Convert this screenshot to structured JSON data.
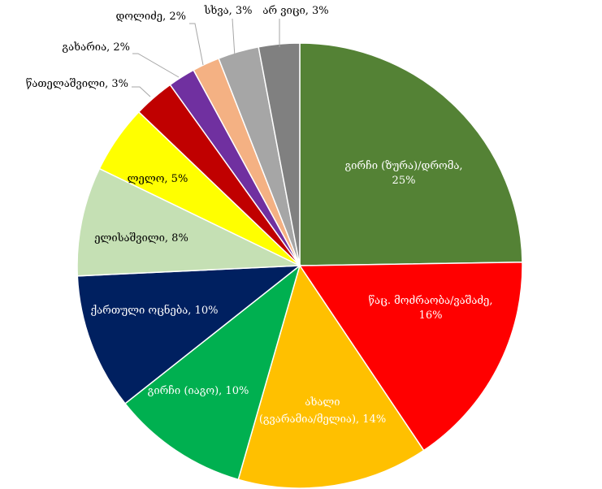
{
  "chart_data": {
    "type": "pie",
    "title": "",
    "slices": [
      {
        "label": "გირჩი (ზურა)/დრომა",
        "value": 25,
        "display": "25%",
        "color": "#548235"
      },
      {
        "label": "წაც. მოძრაობა/ვაშაძე",
        "value": 16,
        "display": "16%",
        "color": "#ff0000"
      },
      {
        "label": "ახალი (გვარამია/მელია)",
        "value": 14,
        "display": "14%",
        "color": "#ffc000"
      },
      {
        "label": "გირჩი (იაგო)",
        "value": 10,
        "display": "10%",
        "color": "#00b050"
      },
      {
        "label": "ქართული ოცნება",
        "value": 10,
        "display": "10%",
        "color": "#002060"
      },
      {
        "label": "ელისაშვილი",
        "value": 8,
        "display": "8%",
        "color": "#c5e0b4"
      },
      {
        "label": "ლელო",
        "value": 5,
        "display": "5%",
        "color": "#ffff00"
      },
      {
        "label": "წათელაშვილი",
        "value": 3,
        "display": "3%",
        "color": "#c00000"
      },
      {
        "label": "გახარია",
        "value": 2,
        "display": "2%",
        "color": "#7030a0"
      },
      {
        "label": "დოლიძე",
        "value": 2,
        "display": "2%",
        "color": "#f4b183"
      },
      {
        "label": "სხვა",
        "value": 3,
        "display": "3%",
        "color": "#a6a6a6"
      },
      {
        "label": "არ ვიცი",
        "value": 3,
        "display": "3%",
        "color": "#808080"
      }
    ]
  }
}
